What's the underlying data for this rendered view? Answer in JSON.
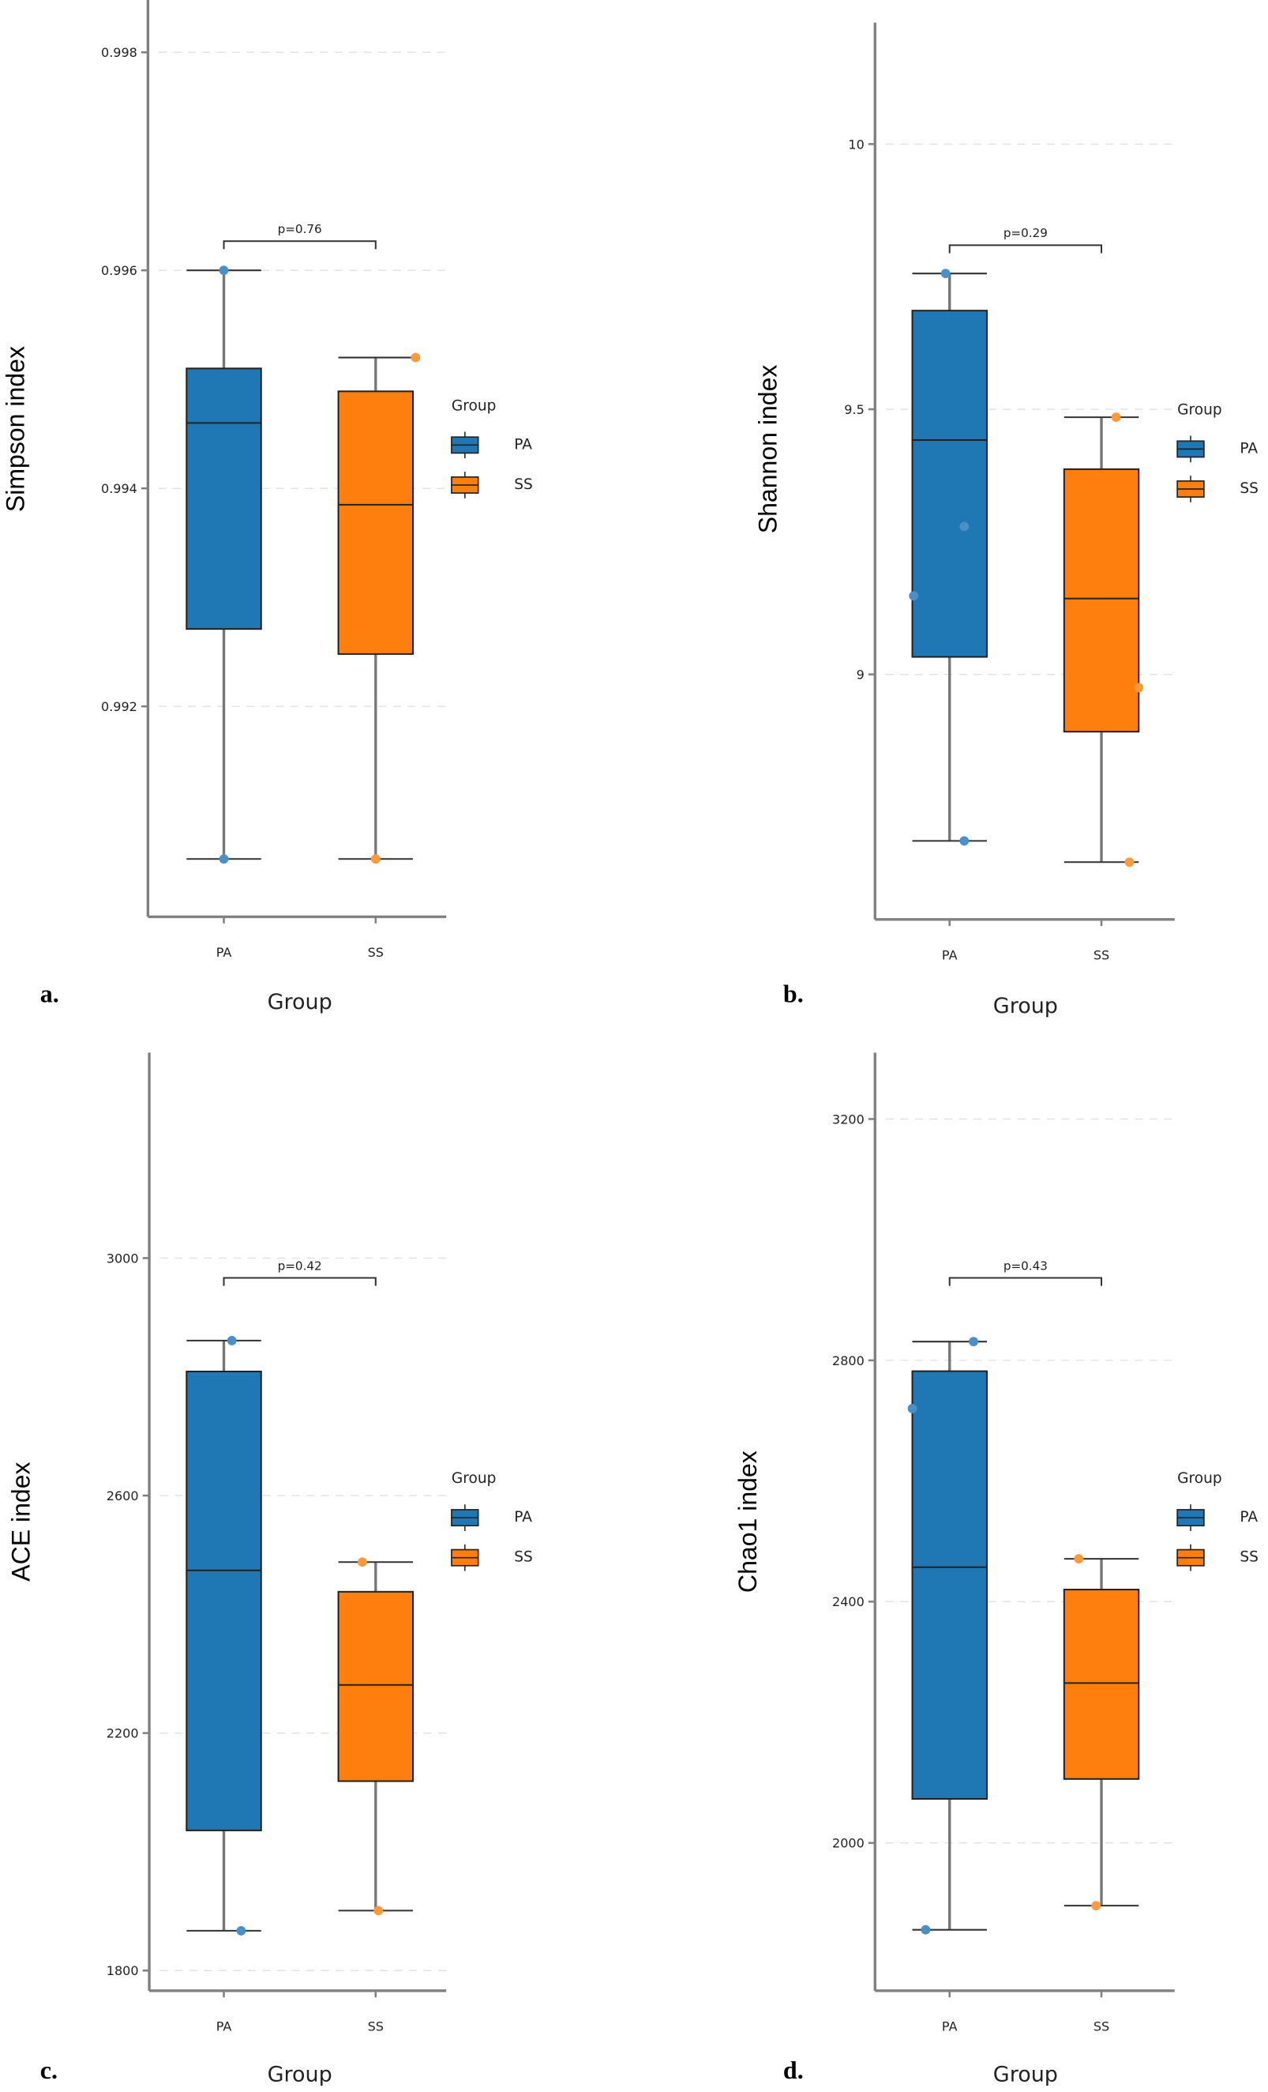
{
  "colors": {
    "PA": "#1f77b4",
    "SS": "#ff7f0e",
    "PA_point": "#4a90c8",
    "SS_point": "#ff9a3c",
    "axis": "#808080",
    "grid": "#e0e0e0"
  },
  "chart_data": [
    {
      "type": "box",
      "panel_letter": "a.",
      "xlabel": "Group",
      "ylabel": "Simpson index",
      "categories": [
        "PA",
        "SS"
      ],
      "ylim": [
        0.99007,
        0.99848
      ],
      "yticks": [
        0.992,
        0.994,
        0.996,
        0.998
      ],
      "ytick_labels": [
        "0.992",
        "0.994",
        "0.996",
        "0.998"
      ],
      "grid": "horizontal dashed",
      "legend": {
        "title": "Group",
        "entries": [
          "PA",
          "SS"
        ],
        "placement": "right"
      },
      "p_label": "p=0.76",
      "series": [
        {
          "name": "PA",
          "whisker_low": 0.9906,
          "q1": 0.99271,
          "median": 0.9946,
          "q3": 0.9951,
          "whisker_high": 0.996,
          "points": [
            0.996,
            0.9906
          ]
        },
        {
          "name": "SS",
          "whisker_low": 0.9906,
          "q1": 0.99248,
          "median": 0.99385,
          "q3": 0.99489,
          "whisker_high": 0.9952,
          "points": [
            0.9952,
            0.9906
          ]
        }
      ]
    },
    {
      "type": "box",
      "panel_letter": "b.",
      "xlabel": "Group",
      "ylabel": "Shannon index",
      "categories": [
        "PA",
        "SS"
      ],
      "ylim": [
        8.538,
        10.229
      ],
      "yticks": [
        9,
        9.5,
        10
      ],
      "ytick_labels": [
        "9",
        "9.5",
        "10"
      ],
      "grid": "horizontal dashed",
      "legend": {
        "title": "Group",
        "entries": [
          "PA",
          "SS"
        ],
        "placement": "right"
      },
      "p_label": "p=0.29",
      "series": [
        {
          "name": "PA",
          "whisker_low": 8.686,
          "q1": 9.033,
          "median": 9.442,
          "q3": 9.686,
          "whisker_high": 9.756,
          "points": [
            9.756,
            9.279,
            9.148,
            8.686
          ]
        },
        {
          "name": "SS",
          "whisker_low": 8.646,
          "q1": 8.892,
          "median": 9.143,
          "q3": 9.387,
          "whisker_high": 9.485,
          "points": [
            9.485,
            8.975,
            8.646
          ]
        }
      ]
    },
    {
      "type": "box",
      "panel_letter": "c.",
      "xlabel": "Group",
      "ylabel": "ACE index",
      "categories": [
        "PA",
        "SS"
      ],
      "ylim": [
        1766,
        3346
      ],
      "yticks": [
        1800,
        2200,
        2600,
        3000
      ],
      "ytick_labels": [
        "1800",
        "2200",
        "2600",
        "3000"
      ],
      "grid": "horizontal dashed",
      "legend": {
        "title": "Group",
        "entries": [
          "PA",
          "SS"
        ],
        "placement": "right"
      },
      "p_label": "p=0.42",
      "series": [
        {
          "name": "PA",
          "whisker_low": 1867,
          "q1": 2036,
          "median": 2474,
          "q3": 2809,
          "whisker_high": 2861,
          "points": [
            2861,
            1867
          ]
        },
        {
          "name": "SS",
          "whisker_low": 1901,
          "q1": 2119,
          "median": 2281,
          "q3": 2438,
          "whisker_high": 2488,
          "points": [
            2488,
            1901
          ]
        }
      ]
    },
    {
      "type": "box",
      "panel_letter": "d.",
      "xlabel": "Group",
      "ylabel": "Chao1 index",
      "categories": [
        "PA",
        "SS"
      ],
      "ylim": [
        1755,
        3310
      ],
      "yticks": [
        2000,
        2400,
        2800,
        3200
      ],
      "ytick_labels": [
        "2000",
        "2400",
        "2800",
        "3200"
      ],
      "grid": "horizontal dashed",
      "legend": {
        "title": "Group",
        "entries": [
          "PA",
          "SS"
        ],
        "placement": "right"
      },
      "p_label": "p=0.43",
      "series": [
        {
          "name": "PA",
          "whisker_low": 1856,
          "q1": 2073,
          "median": 2457,
          "q3": 2782,
          "whisker_high": 2831,
          "points": [
            2831,
            2720,
            1856
          ]
        },
        {
          "name": "SS",
          "whisker_low": 1896,
          "q1": 2106,
          "median": 2265,
          "q3": 2420,
          "whisker_high": 2471,
          "points": [
            2471,
            1896
          ]
        }
      ]
    }
  ]
}
